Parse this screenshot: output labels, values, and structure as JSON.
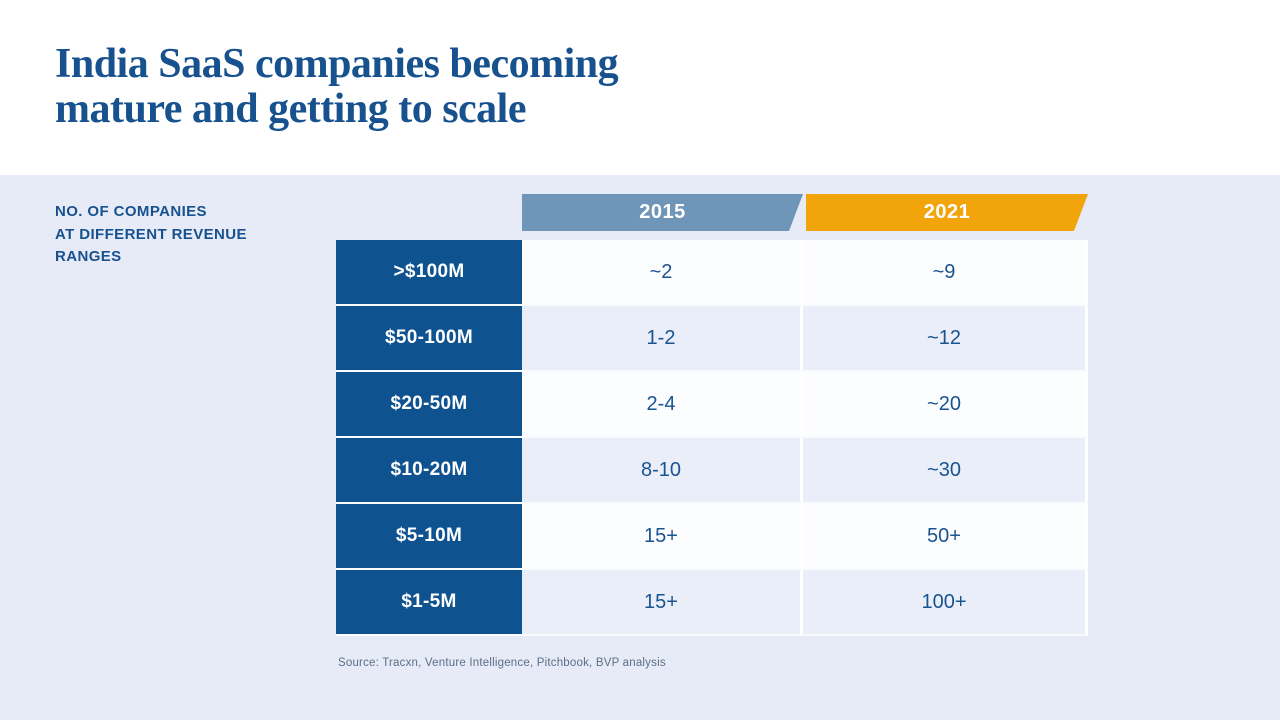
{
  "slide": {
    "title": {
      "line1": "India SaaS companies becoming",
      "line2": "mature and getting to scale"
    },
    "table_caption": {
      "line1": "NO. OF COMPANIES",
      "line2": "AT DIFFERENT REVENUE",
      "line3": "RANGES"
    },
    "source": "Source: Tracxn, Venture Intelligence, Pitchbook, BVP analysis"
  },
  "chart_data": {
    "type": "table",
    "title": "India SaaS companies becoming mature and getting to scale",
    "caption": "No. of companies at different revenue ranges",
    "categories": [
      ">$100M",
      "$50-100M",
      "$20-50M",
      "$10-20M",
      "$5-10M",
      "$1-5M"
    ],
    "series": [
      {
        "name": "2015",
        "values": [
          "~2",
          "1-2",
          "2-4",
          "8-10",
          "15+",
          "15+"
        ]
      },
      {
        "name": "2021",
        "values": [
          "~9",
          "~12",
          "~20",
          "~30",
          "50+",
          "100+"
        ]
      }
    ],
    "legend_position": "top",
    "colors": {
      "header_2015": "#6f96b8",
      "header_2021": "#f2a50a",
      "row_label_bg": "#0e5390",
      "value_text": "#1a5490",
      "title_text": "#17528f",
      "background": "#e7ebf7"
    }
  }
}
